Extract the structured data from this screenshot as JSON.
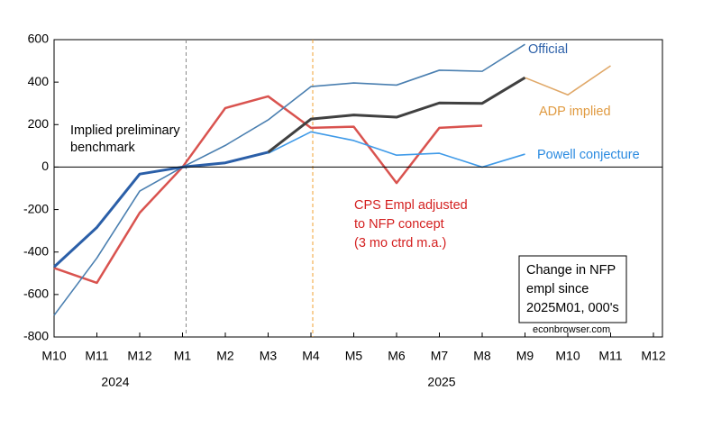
{
  "chart_data": {
    "type": "line",
    "categories": [
      "M10",
      "M11",
      "M12",
      "M1",
      "M2",
      "M3",
      "M4",
      "M5",
      "M6",
      "M7",
      "M8",
      "M9",
      "M10",
      "M11",
      "M12"
    ],
    "year_labels": [
      "2024",
      "2025"
    ],
    "ylim": [
      -800,
      600
    ],
    "yticks": [
      -800,
      -600,
      -400,
      -200,
      0,
      200,
      400,
      600
    ],
    "series": [
      {
        "name": [
          "CPS Empl adjusted",
          "to NFP concept",
          "(3 mo ctrd m.a.)"
        ],
        "color": "#d9534f",
        "width": 2.5,
        "values": [
          -475,
          -545,
          -215,
          0,
          278,
          333,
          185,
          190,
          -75,
          185,
          195,
          null,
          null,
          null,
          null
        ]
      },
      {
        "name": "Official",
        "color": "#4a7fb0",
        "width": 1.6,
        "values": [
          -698,
          -428,
          -113,
          0,
          102,
          222,
          379,
          396,
          386,
          456,
          451,
          578,
          null,
          null,
          null
        ]
      },
      {
        "name": "Powell conjecture",
        "color": "#3f9ae8",
        "width": 1.6,
        "values": [
          null,
          null,
          null,
          null,
          null,
          65,
          166,
          125,
          56,
          65,
          0,
          61,
          null,
          null,
          null
        ]
      },
      {
        "name": "ADP implied",
        "color": "#e0a868",
        "width": 1.6,
        "values": [
          null,
          null,
          null,
          null,
          null,
          null,
          null,
          null,
          null,
          null,
          null,
          421,
          340,
          477,
          null
        ]
      },
      {
        "color": "#404040",
        "width": 3,
        "values": [
          null,
          null,
          null,
          null,
          null,
          70,
          226,
          245,
          235,
          302,
          300,
          421,
          null,
          null,
          null
        ]
      },
      {
        "name": [
          "Implied preliminary",
          "benchmark"
        ],
        "color": "#2b5fa8",
        "width": 3,
        "values": [
          -470,
          -284,
          -33,
          0,
          20,
          70,
          null,
          null,
          null,
          null,
          null,
          null,
          null,
          null,
          null
        ]
      }
    ],
    "note": [
      "Change in NFP",
      "empl since",
      "2025M01, 000's"
    ],
    "source": "econbrowser.com"
  }
}
